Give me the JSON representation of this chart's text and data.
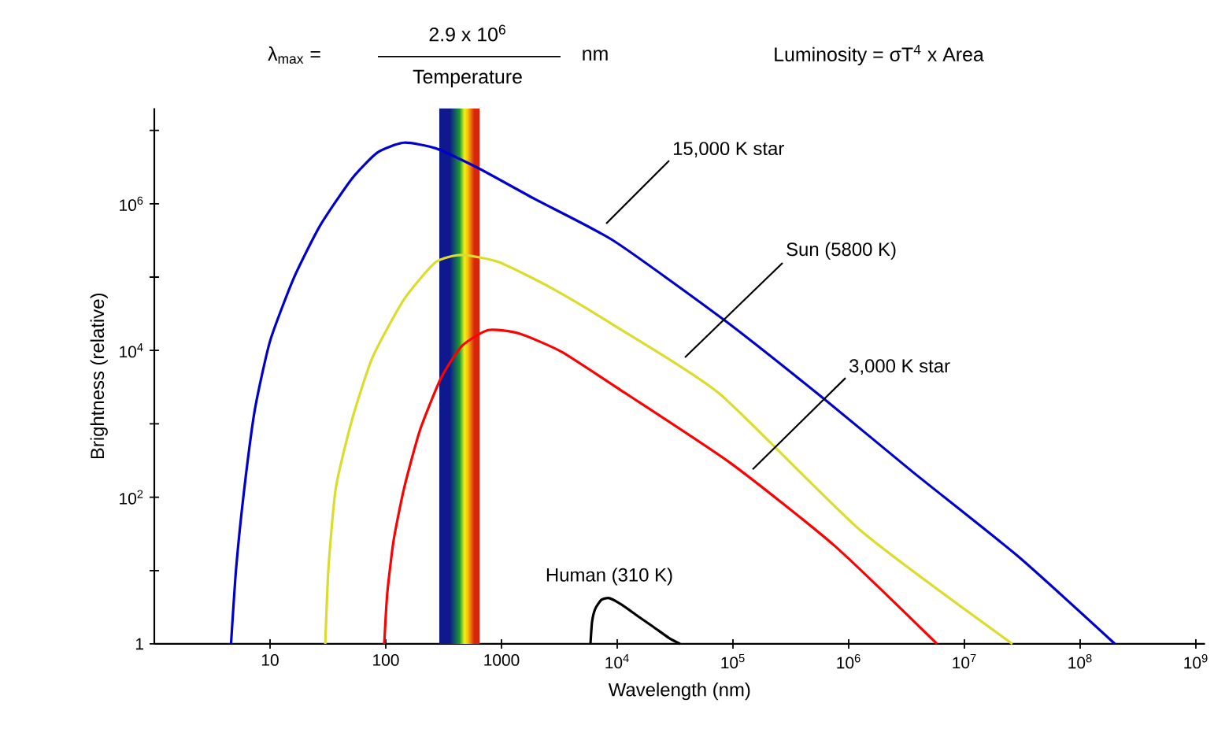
{
  "chart_data": {
    "type": "line",
    "xlabel": "Wavelength (nm)",
    "ylabel": "Brightness (relative)",
    "log": "xy",
    "xlim": [
      1,
      1200000000
    ],
    "ylim": [
      1,
      20000000
    ],
    "xticks": [
      10,
      100,
      1000,
      {
        "value": 10000,
        "label": "10$^{4}$"
      },
      {
        "value": 100000,
        "label": "10$^{5}$"
      },
      {
        "value": 1000000,
        "label": "10$^{6}$"
      },
      {
        "value": 10000000,
        "label": "10$^{7}$"
      },
      {
        "value": 100000000,
        "label": "10$^{8}$"
      },
      {
        "value": 1000000000,
        "label": "10$^{9}$"
      }
    ],
    "yticks": [
      1,
      {
        "value": 10,
        "label": null
      },
      {
        "value": 100,
        "label": "10$^{2}$"
      },
      {
        "value": 1000,
        "label": null
      },
      {
        "value": 10000,
        "label": "10$^{4}$"
      },
      {
        "value": 100000,
        "label": null
      },
      {
        "value": 1000000,
        "label": "10$^{6}$"
      },
      {
        "value": 10000000,
        "label": null
      }
    ],
    "bands": [
      {
        "axis": "x",
        "from": 290,
        "to": 650
      }
    ],
    "series": [
      {
        "color": "#0000cc",
        "x": [
          4.6,
          5.1,
          6,
          7.4,
          10,
          16,
          27,
          51,
          85,
          144,
          270,
          620,
          1960,
          9400,
          84000,
          610000,
          3600000,
          29000000,
          200000000
        ],
        "values": [
          1,
          11,
          133,
          1580,
          13400,
          96000,
          500000,
          2200000,
          5000000,
          6800000,
          5700000,
          3100000,
          1150000,
          310000,
          26000,
          2200,
          219,
          15.7,
          1
        ]
      },
      {
        "color": "#dcdc2c",
        "x": [
          30,
          32,
          37,
          51,
          77,
          144,
          270,
          454,
          950,
          2700,
          9400,
          76000,
          1270000,
          26000000
        ],
        "values": [
          1,
          11,
          133,
          1130,
          8100,
          50000,
          160000,
          200000,
          160000,
          71000,
          22000,
          2600,
          35,
          1
        ]
      },
      {
        "color": "#ff0000",
        "x": [
          97,
          103,
          117,
          144,
          197,
          300,
          454,
          770,
          1430,
          3300,
          9400,
          93000,
          750000,
          5800000
        ],
        "values": [
          1,
          4.9,
          26,
          133,
          810,
          4200,
          11500,
          19000,
          17000,
          9600,
          3300,
          300,
          22,
          1
        ]
      },
      {
        "color": "#000000",
        "x": [
          5870,
          6060,
          6450,
          7310,
          8550,
          11000,
          15000,
          20600,
          28100,
          35000
        ],
        "values": [
          1,
          2,
          3,
          4,
          4.2,
          3.4,
          2.4,
          1.7,
          1.2,
          1
        ]
      }
    ],
    "annotations": [
      "λ$_{max}$ =",
      "2.9 x 10$^{6}$",
      "Temperature",
      "nm",
      "Luminosity = σT$^{4}$ x Area",
      "15,000 K star",
      "Sun (5800 K)",
      {
        "text": "3,000 K star",
        "x": 148000,
        "y": 240
      },
      {
        "text": "Human (310 K)",
        "x": 8550,
        "y": 4.2
      }
    ]
  }
}
